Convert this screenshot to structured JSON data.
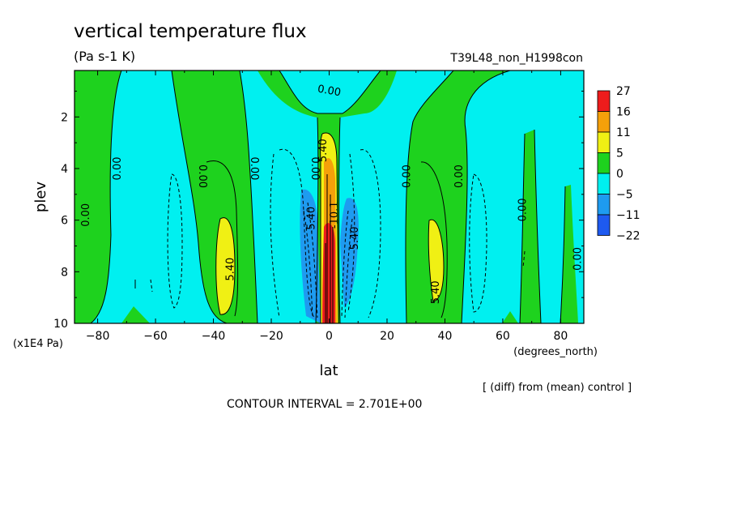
{
  "chart_data": {
    "type": "heatmap",
    "title": "vertical temperature flux",
    "subtitle": "(Pa s-1 K)",
    "run_label": "T39L48_non_H1998con",
    "xlabel": "lat",
    "x_units": "(degrees_north)",
    "ylabel": "plev",
    "y_units": "(x1E4 Pa)",
    "x_ticks": [
      -80,
      -60,
      -40,
      -20,
      0,
      20,
      40,
      60,
      80
    ],
    "x_tick_labels": [
      "−80",
      "−60",
      "−40",
      "−20",
      "0",
      "20",
      "40",
      "60",
      "80"
    ],
    "y_ticks": [
      2,
      4,
      6,
      8,
      10
    ],
    "xlim": [
      -88,
      88
    ],
    "ylim": [
      0.2,
      10
    ],
    "colorbar": {
      "levels": [
        "27",
        "16",
        "11",
        "5",
        "0",
        "−5",
        "−11",
        "−22"
      ],
      "colors": [
        "#ee1c1c",
        "#f5a00a",
        "#f0f014",
        "#1ed21e",
        "#00f0f0",
        "#1e9bf0",
        "#1e5af0"
      ]
    },
    "contour_labels": [
      {
        "text": "0.00",
        "x": -73,
        "y": 4.0,
        "rot": -90
      },
      {
        "text": "0.00",
        "x": -84,
        "y": 5.8,
        "rot": -90
      },
      {
        "text": "0.00",
        "x": -44,
        "y": 4.3,
        "rot": 90
      },
      {
        "text": "0.00",
        "x": -26,
        "y": 4.0,
        "rot": 90
      },
      {
        "text": "0.00",
        "x": -5,
        "y": 4.0,
        "rot": 90
      },
      {
        "text": "0.00",
        "x": 0,
        "y": 1.0,
        "rot": 10
      },
      {
        "text": "0.00",
        "x": 27,
        "y": 4.3,
        "rot": -90
      },
      {
        "text": "0.00",
        "x": 45,
        "y": 4.3,
        "rot": -90
      },
      {
        "text": "0.00",
        "x": 67,
        "y": 5.6,
        "rot": -90
      },
      {
        "text": "0.00",
        "x": 86,
        "y": 7.5,
        "rot": -90
      },
      {
        "text": "5.40",
        "x": -34,
        "y": 7.9,
        "rot": -90
      },
      {
        "text": "5.40",
        "x": 37,
        "y": 8.8,
        "rot": -90
      },
      {
        "text": "5.40",
        "x": -2,
        "y": 3.3,
        "rot": -90
      },
      {
        "text": "5.40",
        "x": 9,
        "y": 6.7,
        "rot": -90
      },
      {
        "text": "-5.40",
        "x": -6,
        "y": 6.0,
        "rot": -90
      },
      {
        "text": "-10.1",
        "x": 2,
        "y": 5.8,
        "rot": -90
      }
    ],
    "footnote": "[ (diff) from (mean) control ]",
    "contour_interval": "CONTOUR INTERVAL = 2.701E+00"
  }
}
